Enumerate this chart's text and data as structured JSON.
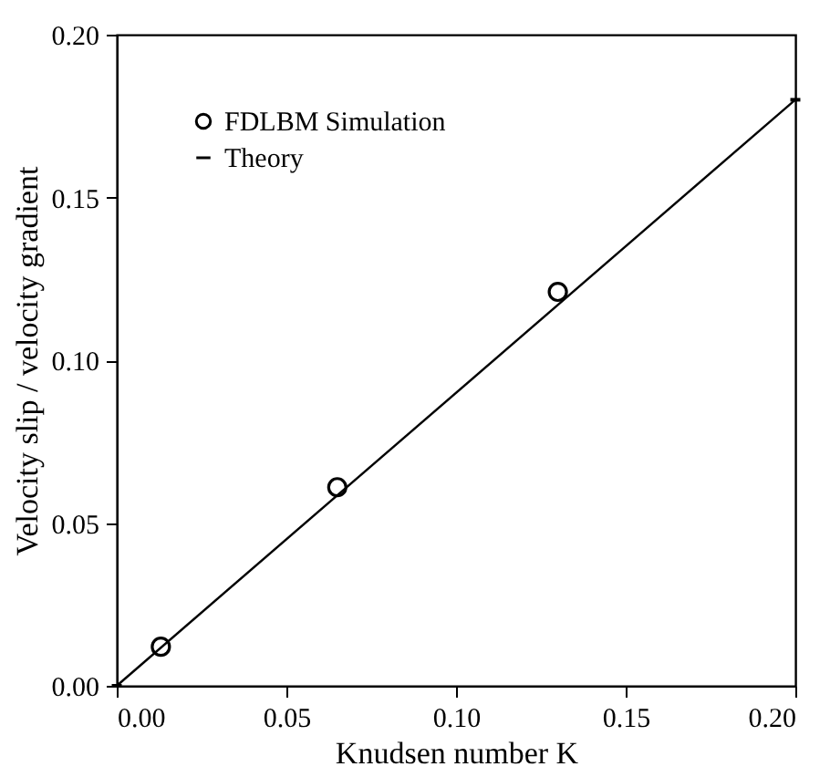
{
  "chart_data": {
    "type": "scatter",
    "xlabel": "Knudsen number   K",
    "ylabel": "Velocity slip / velocity gradient",
    "xlim": [
      0,
      0.2
    ],
    "ylim": [
      0,
      0.2
    ],
    "xticks": [
      {
        "value": 0,
        "label": "0.00"
      },
      0.05,
      {
        "value": 0.1,
        "label": "0.10"
      },
      0.15,
      {
        "value": 0.2,
        "label": "0.20"
      }
    ],
    "yticks": [
      {
        "value": 0,
        "label": "0.00"
      },
      0.05,
      {
        "value": 0.1,
        "label": "0.10"
      },
      0.15,
      {
        "value": 0.2,
        "label": "0.20"
      }
    ],
    "legend": "top left",
    "grid": false,
    "series": [
      {
        "name": "FDLBM Simulation",
        "marker": "circle",
        "color": "#000000",
        "x": [
          0.013,
          0.065,
          0.13
        ],
        "values": [
          0.012,
          0.061,
          0.121
        ]
      },
      {
        "name": "Theory",
        "type": "line",
        "marker": "none",
        "line_style": "solid",
        "color": "#000000",
        "x": [
          0,
          0.2
        ],
        "values": [
          0,
          0.18
        ]
      }
    ]
  }
}
